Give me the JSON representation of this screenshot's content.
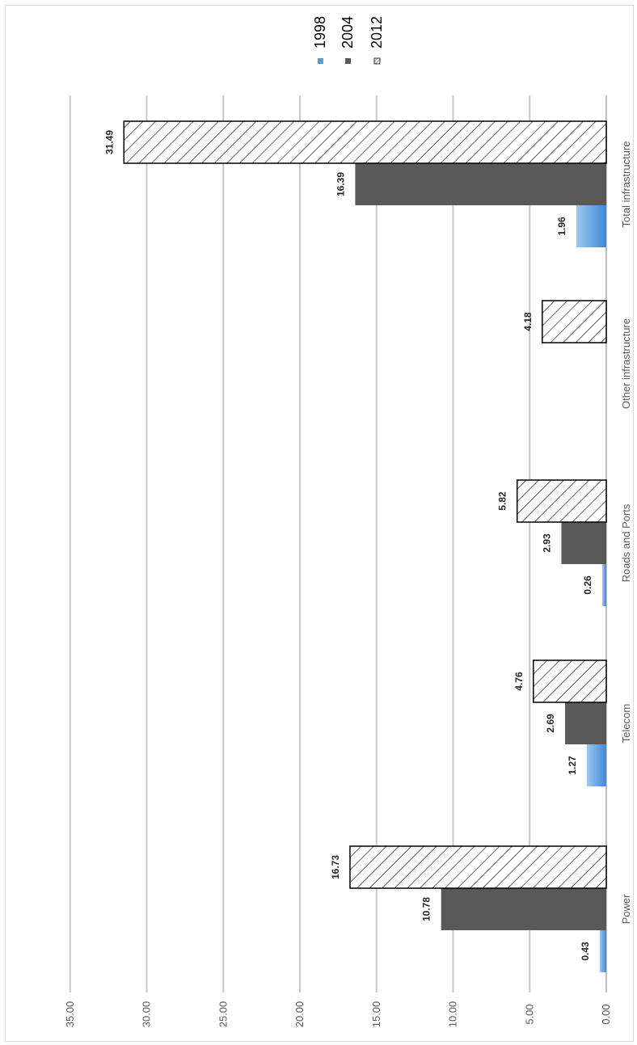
{
  "chart_data": {
    "type": "bar",
    "orientation": "horizontal",
    "categories": [
      "Power",
      "Telecom",
      "Roads and Ports",
      "Other infrastructure",
      "Total infrastructure"
    ],
    "series": [
      {
        "name": "1998",
        "values": [
          0.43,
          1.27,
          0.26,
          null,
          1.96
        ],
        "labels": [
          "0.43",
          "1.27",
          "0.26",
          "",
          "1.96"
        ],
        "color": "#5b9bd5",
        "style": "gradient"
      },
      {
        "name": "2004",
        "values": [
          10.78,
          2.69,
          2.93,
          null,
          16.39
        ],
        "labels": [
          "10.78",
          "2.69",
          "2.93",
          "",
          "16.39"
        ],
        "color": "#595959",
        "style": "solid"
      },
      {
        "name": "2012",
        "values": [
          16.73,
          4.76,
          5.82,
          4.18,
          31.49
        ],
        "labels": [
          "16.73",
          "4.76",
          "5.82",
          "4.18",
          "31.49"
        ],
        "color": "#000000",
        "style": "hatched"
      }
    ],
    "ticks": [
      "0.00",
      "5.00",
      "10.00",
      "15.00",
      "20.00",
      "25.00",
      "30.00",
      "35.00"
    ],
    "xlim": [
      0,
      35
    ],
    "grid": true,
    "legend_position": "top-right",
    "title": "",
    "xlabel": "",
    "ylabel": ""
  }
}
